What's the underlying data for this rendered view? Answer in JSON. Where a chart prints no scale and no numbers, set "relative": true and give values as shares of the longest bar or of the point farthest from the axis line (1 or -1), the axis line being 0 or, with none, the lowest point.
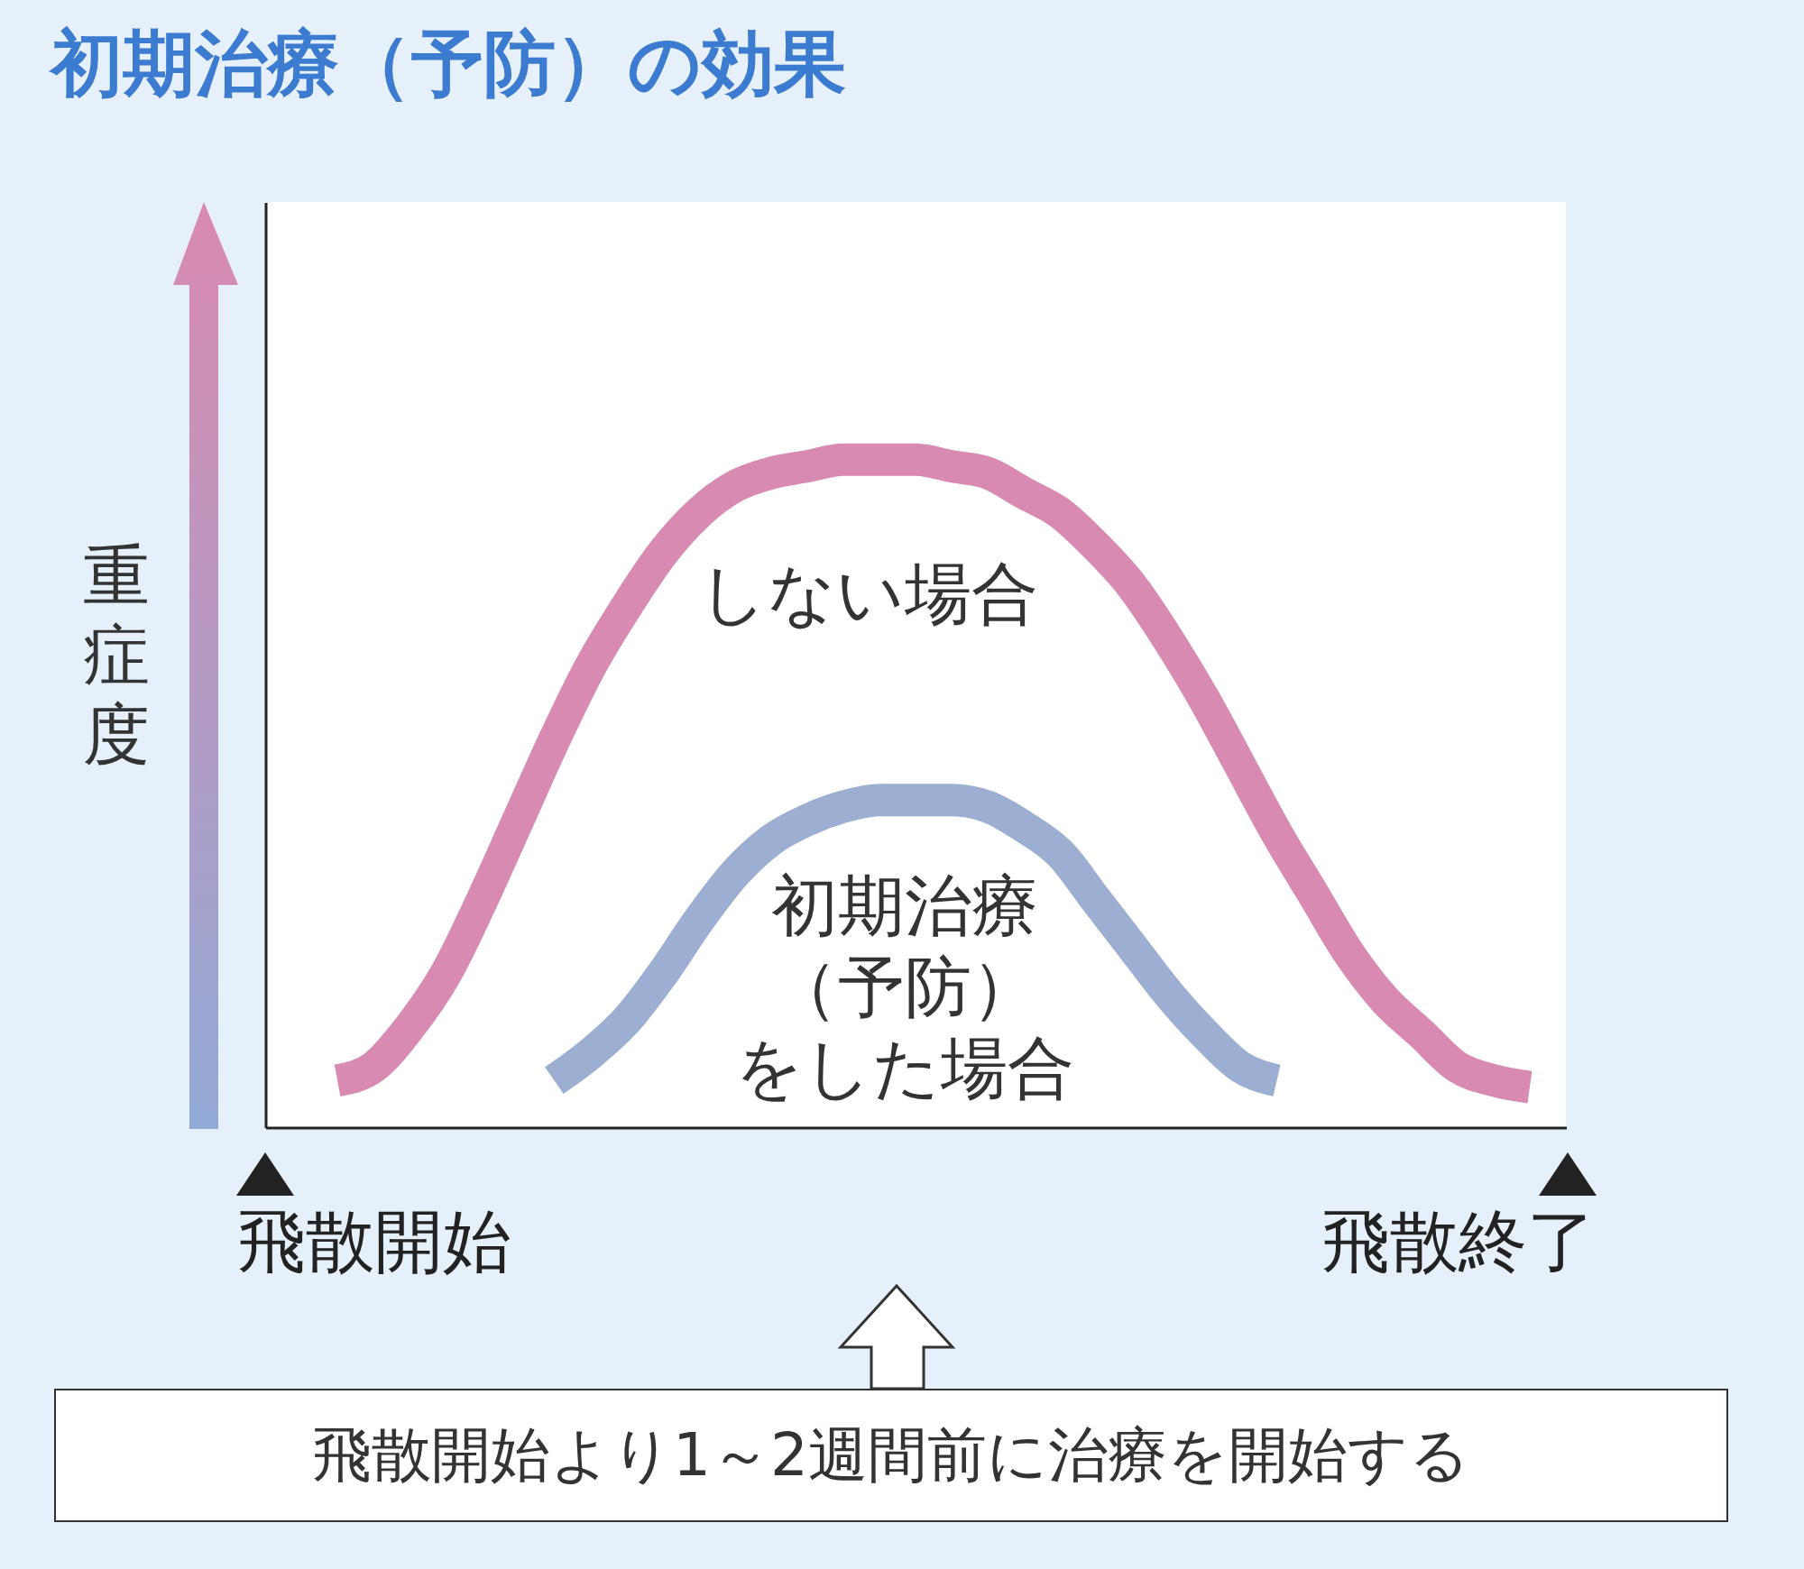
{
  "chart_data": {
    "type": "line",
    "title": "初期治療（予防）の効果",
    "ylabel": "重症度",
    "relative": true,
    "legend": false,
    "grid": false,
    "categories": [
      null,
      null,
      null,
      "飛散開始",
      null,
      null,
      null,
      null,
      null,
      null,
      null,
      null,
      null,
      null,
      null,
      null,
      null,
      null,
      null,
      null,
      null,
      null,
      null,
      null,
      null,
      null,
      null,
      null,
      null,
      null,
      null,
      null,
      null,
      "飛散終了",
      null,
      null,
      null
    ],
    "series": [
      {
        "name": "しない場合",
        "color": "#d98ab0",
        "values": [
          null,
          null,
          0.07,
          0.09,
          0.15,
          0.23,
          0.34,
          0.46,
          0.58,
          0.69,
          0.78,
          0.86,
          0.92,
          0.96,
          0.98,
          0.99,
          1.0,
          1.0,
          1.0,
          0.99,
          0.98,
          0.95,
          0.92,
          0.87,
          0.81,
          0.73,
          0.64,
          0.54,
          0.44,
          0.35,
          0.26,
          0.19,
          0.14,
          0.09,
          0.07,
          0.06,
          null
        ]
      },
      {
        "name": "初期治療（予防）をした場合",
        "color": "#9cafd3",
        "values": [
          null,
          null,
          null,
          null,
          null,
          null,
          null,
          null,
          0.07,
          0.11,
          0.16,
          0.23,
          0.31,
          0.38,
          0.43,
          0.46,
          0.48,
          0.49,
          0.49,
          0.49,
          0.48,
          0.45,
          0.41,
          0.34,
          0.27,
          0.2,
          0.14,
          0.09,
          0.07,
          null,
          null,
          null,
          null,
          null,
          null,
          null,
          null
        ]
      }
    ],
    "annotations": [
      "飛散開始より1～2週間前に治療を開始する"
    ]
  }
}
